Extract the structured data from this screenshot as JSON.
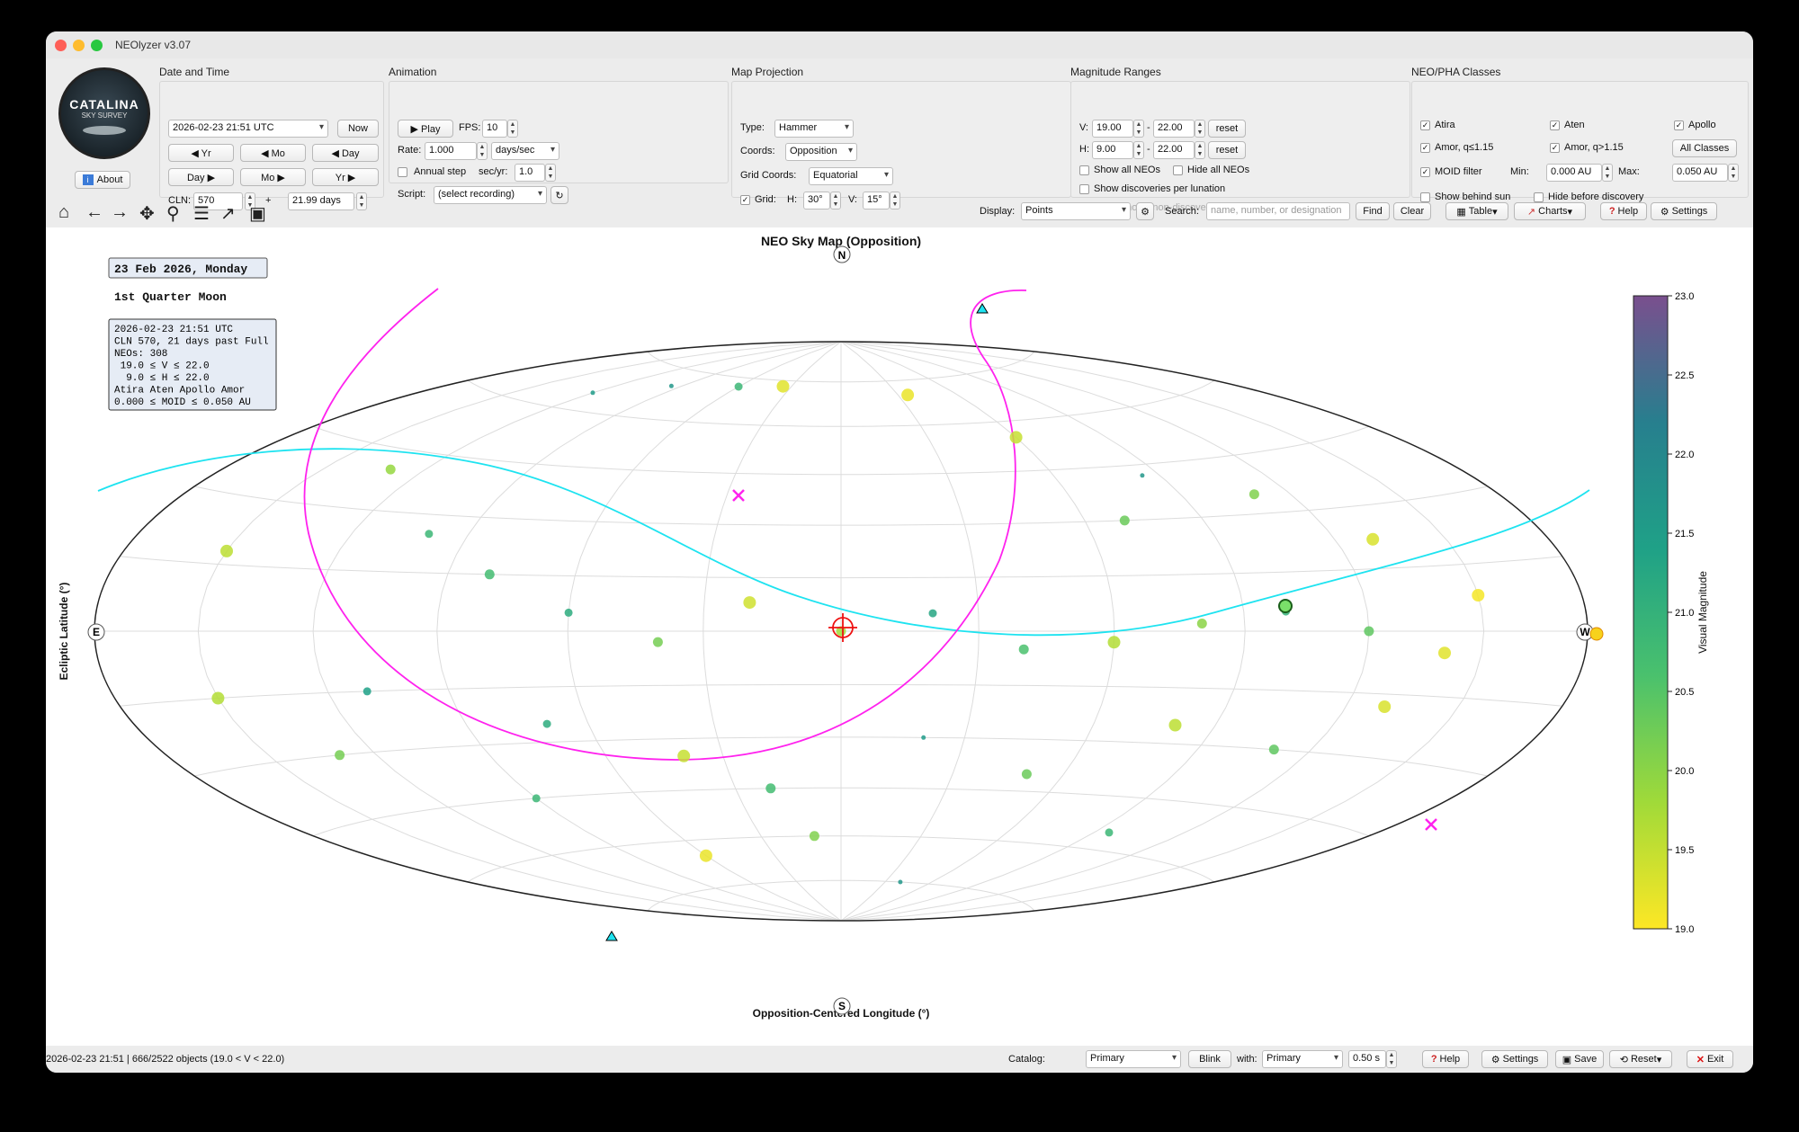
{
  "window": {
    "title": "NEOlyzer v3.07"
  },
  "logo": {
    "line1": "CATALINA",
    "line2": "SKY SURVEY"
  },
  "about_label": "About",
  "date_time": {
    "title": "Date and Time",
    "datetime_value": "2026-02-23 21:51 UTC",
    "now_label": "Now",
    "yr_back": "◀ Yr",
    "mo_back": "◀ Mo",
    "day_back": "◀ Day",
    "day_fwd": "Day ▶",
    "mo_fwd": "Mo ▶",
    "yr_fwd": "Yr ▶",
    "cln_label": "CLN:",
    "cln_value": "570",
    "plus": "+",
    "days_value": "21.99 days"
  },
  "animation": {
    "title": "Animation",
    "play_label": "▶ Play",
    "fps_label": "FPS:",
    "fps_value": "10",
    "rate_label": "Rate:",
    "rate_value": "1.000",
    "rate_unit": "days/sec",
    "annual_label": "Annual step",
    "secyr_label": "sec/yr:",
    "secyr_value": "1.0",
    "script_label": "Script:",
    "script_value": "(select recording)"
  },
  "projection": {
    "title": "Map Projection",
    "type_label": "Type:",
    "type_value": "Hammer",
    "coords_label": "Coords:",
    "coords_value": "Opposition",
    "grid_coords_label": "Grid Coords:",
    "grid_coords_value": "Equatorial",
    "grid_label": "Grid:",
    "h_label": "H:",
    "h_value": "30°",
    "v_label": "V:",
    "v_value": "15°"
  },
  "magnitude": {
    "title": "Magnitude Ranges",
    "v_label": "V:",
    "v_min": "19.00",
    "v_max": "22.00",
    "h_label": "H:",
    "h_min": "9.00",
    "h_max": "22.00",
    "dash": "-",
    "reset_label": "reset",
    "show_all": "Show all NEOs",
    "hide_all": "Hide all NEOs",
    "show_disc": "Show discoveries per lunation",
    "show_known": "Show known non-discoveries"
  },
  "classes": {
    "title": "NEO/PHA Classes",
    "atira": "Atira",
    "aten": "Aten",
    "apollo": "Apollo",
    "amor1": "Amor, q≤1.15",
    "amor2": "Amor, q>1.15",
    "all_classes": "All Classes",
    "moid": "MOID filter",
    "min_label": "Min:",
    "min_value": "0.000 AU",
    "max_label": "Max:",
    "max_value": "0.050 AU",
    "behind_sun": "Show behind sun",
    "hide_before": "Hide before discovery"
  },
  "toolbar": {
    "display_label": "Display:",
    "display_value": "Points",
    "search_label": "Search:",
    "search_placeholder": "name, number, or designation",
    "find_label": "Find",
    "clear_label": "Clear",
    "table_label": "Table",
    "charts_label": "Charts",
    "help_label": "Help",
    "settings_label": "Settings"
  },
  "plot": {
    "title": "NEO Sky Map (Opposition)",
    "xlabel": "Opposition-Centered Longitude (°)",
    "ylabel": "Ecliptic Latitude (°)",
    "date_box": "23 Feb 2026, Monday",
    "moon_phase": "1st Quarter Moon",
    "info_lines": [
      "2026-02-23 21:51 UTC",
      "CLN 570, 21 days past Full",
      "NEOs: 308",
      " 19.0 ≤ V ≤ 22.0",
      "  9.0 ≤ H ≤ 22.0",
      "Atira Aten Apollo Amor",
      "0.000 ≤ MOID ≤ 0.050 AU"
    ],
    "compass": {
      "n": "N",
      "s": "S",
      "e": "E",
      "w": "W"
    }
  },
  "colorbar": {
    "label": "Visual Magnitude",
    "ticks": [
      "23.0",
      "22.5",
      "22.0",
      "21.5",
      "21.0",
      "20.5",
      "20.0",
      "19.5",
      "19.0"
    ],
    "colors": [
      "#fde725",
      "#b5de2b",
      "#6ece58",
      "#35b779",
      "#1f9e89",
      "#26828e",
      "#31688e",
      "#3e4989",
      "#482878",
      "#440154"
    ]
  },
  "status": {
    "text": "2026-02-23 21:51 | 666/2522 objects (19.0 < V < 22.0)",
    "catalog_label": "Catalog:",
    "catalog_value": "Primary",
    "blink_label": "Blink",
    "with_label": "with:",
    "with_value": "Primary",
    "interval_value": "0.50 s",
    "help_label": "Help",
    "settings_label": "Settings",
    "save_label": "Save",
    "reset_label": "Reset",
    "exit_label": "Exit"
  },
  "chart_data": {
    "type": "scatter",
    "title": "NEO Sky Map (Opposition)",
    "xlabel": "Opposition-Centered Longitude (°)",
    "ylabel": "Ecliptic Latitude (°)",
    "colorbar_range": [
      19.0,
      23.0
    ],
    "points": [
      {
        "x": 120,
        "y": 65,
        "mag": 21.5
      },
      {
        "x": 95,
        "y": 70,
        "mag": 21.6
      },
      {
        "x": 60,
        "y": 72,
        "mag": 21.0
      },
      {
        "x": 35,
        "y": 73,
        "mag": 19.3
      },
      {
        "x": -35,
        "y": 70,
        "mag": 19.2
      },
      {
        "x": -60,
        "y": 55,
        "mag": 19.6
      },
      {
        "x": -85,
        "y": 42,
        "mag": 21.6
      },
      {
        "x": -70,
        "y": 30,
        "mag": 20.5
      },
      {
        "x": -110,
        "y": 35,
        "mag": 20.3
      },
      {
        "x": -130,
        "y": 22,
        "mag": 19.4
      },
      {
        "x": -150,
        "y": 8,
        "mag": 19.1
      },
      {
        "x": 150,
        "y": 18,
        "mag": 19.7
      },
      {
        "x": 130,
        "y": 40,
        "mag": 20.1
      },
      {
        "x": 100,
        "y": 25,
        "mag": 21.0
      },
      {
        "x": 80,
        "y": 15,
        "mag": 20.9
      },
      {
        "x": 60,
        "y": 5,
        "mag": 21.2
      },
      {
        "x": 40,
        "y": -3,
        "mag": 20.4
      },
      {
        "x": 20,
        "y": 8,
        "mag": 19.5
      },
      {
        "x": 0,
        "y": 0,
        "mag": 20.0
      },
      {
        "x": -20,
        "y": 5,
        "mag": 21.3
      },
      {
        "x": -40,
        "y": -5,
        "mag": 20.8
      },
      {
        "x": -60,
        "y": -3,
        "mag": 19.8
      },
      {
        "x": -80,
        "y": 2,
        "mag": 20.2
      },
      {
        "x": -100,
        "y": 5,
        "mag": 21.1
      },
      {
        "x": -120,
        "y": 0,
        "mag": 20.6
      },
      {
        "x": -140,
        "y": -5,
        "mag": 19.3
      },
      {
        "x": 150,
        "y": -15,
        "mag": 19.8
      },
      {
        "x": 130,
        "y": -30,
        "mag": 20.4
      },
      {
        "x": 110,
        "y": -15,
        "mag": 21.4
      },
      {
        "x": 90,
        "y": -45,
        "mag": 21.0
      },
      {
        "x": 70,
        "y": -25,
        "mag": 21.2
      },
      {
        "x": 40,
        "y": -35,
        "mag": 19.6
      },
      {
        "x": 20,
        "y": -45,
        "mag": 20.9
      },
      {
        "x": -20,
        "y": -30,
        "mag": 21.5
      },
      {
        "x": -50,
        "y": -40,
        "mag": 20.5
      },
      {
        "x": -80,
        "y": -25,
        "mag": 19.7
      },
      {
        "x": -110,
        "y": -30,
        "mag": 20.6
      },
      {
        "x": -130,
        "y": -18,
        "mag": 19.4
      },
      {
        "x": -95,
        "y": -55,
        "mag": 21.0
      },
      {
        "x": 60,
        "y": -65,
        "mag": 19.2
      },
      {
        "x": 10,
        "y": -60,
        "mag": 20.3
      },
      {
        "x": -40,
        "y": -75,
        "mag": 21.6
      }
    ],
    "ecliptic_line": "cyan",
    "galactic_line": "magenta"
  }
}
